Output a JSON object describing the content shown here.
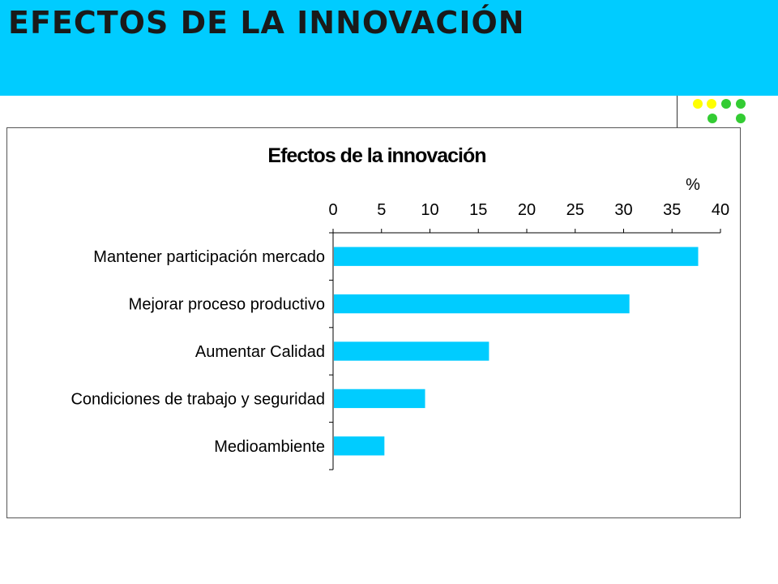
{
  "slide": {
    "title": "EFECTOS DE LA INNOVACIÓN"
  },
  "colors": {
    "banner": "#00CCFF",
    "bar": "#00CCFF",
    "dot_yellow": "#FFFF00",
    "dot_green": "#33CC33"
  },
  "decoration": {
    "dots": [
      "yellow",
      "yellow",
      "green",
      "green",
      "green",
      "green"
    ]
  },
  "chart_data": {
    "type": "bar",
    "orientation": "horizontal",
    "title": "Efectos de la innovación",
    "unit_label": "%",
    "categories": [
      "Mantener participación mercado",
      "Mejorar proceso productivo",
      "Aumentar Calidad",
      "Condiciones de trabajo y seguridad",
      "Medioambiente"
    ],
    "values": [
      37.7,
      30.6,
      16.1,
      9.5,
      5.3
    ],
    "xlim": [
      0,
      40
    ],
    "xticks": [
      0,
      5,
      10,
      15,
      20,
      25,
      30,
      35,
      40
    ],
    "x_axis_position": "top",
    "grid": false,
    "legend": "none"
  }
}
